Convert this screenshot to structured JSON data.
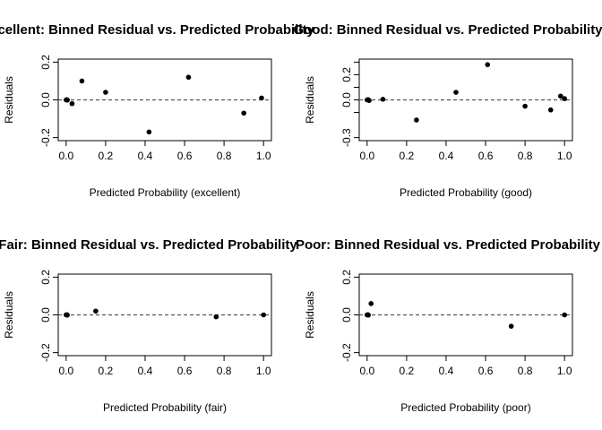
{
  "chart_data": [
    {
      "type": "scatter",
      "title": "Excellent: Binned Residual vs. Predicted Probability",
      "xlabel": "Predicted Probability (excellent)",
      "ylabel": "Residuals",
      "xlim": [
        0,
        1
      ],
      "ylim": [
        -0.2,
        0.2
      ],
      "xticks": [
        "0.0",
        "0.2",
        "0.4",
        "0.6",
        "0.8",
        "1.0"
      ],
      "yticks": [
        "-0.2",
        "0.0",
        "0.2"
      ],
      "ytick_values": [
        -0.2,
        0.0,
        0.2
      ],
      "reference_line": 0,
      "points": [
        {
          "x": 0.0,
          "y": 0.0
        },
        {
          "x": 0.003,
          "y": 0.001
        },
        {
          "x": 0.006,
          "y": -0.001
        },
        {
          "x": 0.03,
          "y": -0.02
        },
        {
          "x": 0.08,
          "y": 0.1
        },
        {
          "x": 0.2,
          "y": 0.04
        },
        {
          "x": 0.42,
          "y": -0.17
        },
        {
          "x": 0.62,
          "y": 0.12
        },
        {
          "x": 0.9,
          "y": -0.07
        },
        {
          "x": 0.99,
          "y": 0.01
        }
      ]
    },
    {
      "type": "scatter",
      "title": "Good: Binned Residual vs. Predicted Probability",
      "xlabel": "Predicted Probability (good)",
      "ylabel": "Residuals",
      "xlim": [
        0,
        1
      ],
      "ylim": [
        -0.3,
        0.3
      ],
      "xticks": [
        "0.0",
        "0.2",
        "0.4",
        "0.6",
        "0.8",
        "1.0"
      ],
      "yticks": [
        "-0.3",
        "0.0",
        "0.2"
      ],
      "ytick_values": [
        -0.3,
        -0.1,
        0.0,
        0.1,
        0.2,
        0.3
      ],
      "ytick_labels_at": [
        -0.3,
        0.0,
        0.2
      ],
      "reference_line": 0,
      "points": [
        {
          "x": 0.0,
          "y": 0.0
        },
        {
          "x": 0.005,
          "y": 0.002
        },
        {
          "x": 0.01,
          "y": -0.005
        },
        {
          "x": 0.08,
          "y": 0.005
        },
        {
          "x": 0.25,
          "y": -0.16
        },
        {
          "x": 0.45,
          "y": 0.06
        },
        {
          "x": 0.61,
          "y": 0.28
        },
        {
          "x": 0.8,
          "y": -0.05
        },
        {
          "x": 0.93,
          "y": -0.08
        },
        {
          "x": 0.98,
          "y": 0.03
        },
        {
          "x": 1.0,
          "y": 0.01
        }
      ]
    },
    {
      "type": "scatter",
      "title": "Fair: Binned Residual vs. Predicted Probability",
      "xlabel": "Predicted Probability (fair)",
      "ylabel": "Residuals",
      "xlim": [
        0,
        1
      ],
      "ylim": [
        -0.2,
        0.2
      ],
      "xticks": [
        "0.0",
        "0.2",
        "0.4",
        "0.6",
        "0.8",
        "1.0"
      ],
      "yticks": [
        "-0.2",
        "0.0",
        "0.2"
      ],
      "ytick_values": [
        -0.2,
        0.0,
        0.2
      ],
      "reference_line": 0,
      "points": [
        {
          "x": 0.0,
          "y": 0.0
        },
        {
          "x": 0.003,
          "y": 0.001
        },
        {
          "x": 0.006,
          "y": -0.001
        },
        {
          "x": 0.15,
          "y": 0.02
        },
        {
          "x": 0.76,
          "y": -0.01
        },
        {
          "x": 1.0,
          "y": 0.0
        }
      ]
    },
    {
      "type": "scatter",
      "title": "Poor: Binned Residual vs. Predicted Probability",
      "xlabel": "Predicted Probability (poor)",
      "ylabel": "Residuals",
      "xlim": [
        0,
        1
      ],
      "ylim": [
        -0.2,
        0.2
      ],
      "xticks": [
        "0.0",
        "0.2",
        "0.4",
        "0.6",
        "0.8",
        "1.0"
      ],
      "yticks": [
        "-0.2",
        "0.0",
        "0.2"
      ],
      "ytick_values": [
        -0.2,
        0.0,
        0.2
      ],
      "reference_line": 0,
      "points": [
        {
          "x": 0.0,
          "y": 0.0
        },
        {
          "x": 0.003,
          "y": 0.001
        },
        {
          "x": 0.006,
          "y": -0.001
        },
        {
          "x": 0.02,
          "y": 0.06
        },
        {
          "x": 0.73,
          "y": -0.06
        },
        {
          "x": 1.0,
          "y": 0.0
        }
      ]
    }
  ]
}
